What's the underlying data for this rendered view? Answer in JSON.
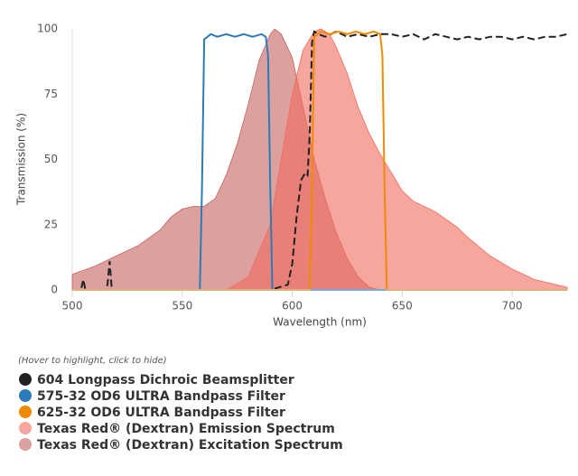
{
  "chart_data": {
    "type": "line",
    "x_label": "Wavelength (nm)",
    "y_label": "Transmission (%)",
    "legend_hint": "(Hover to highlight, click to hide)",
    "xlim": [
      500,
      725
    ],
    "ylim": [
      0,
      100
    ],
    "xticks": [
      500,
      550,
      600,
      650,
      700
    ],
    "yticks": [
      0,
      25,
      50,
      75,
      100
    ],
    "grid": false,
    "series": [
      {
        "name": "604 Longpass Dichroic Beamsplitter",
        "color": "#222222",
        "style": "line",
        "dashed": true,
        "x": [
          500,
          504,
          505,
          506,
          515,
          516,
          517,
          518,
          520,
          550,
          590,
          598,
          600,
          602,
          604,
          606,
          607,
          608,
          609,
          610,
          612,
          615,
          620,
          625,
          630,
          635,
          640,
          645,
          650,
          655,
          660,
          665,
          670,
          675,
          680,
          685,
          690,
          695,
          700,
          705,
          710,
          715,
          720,
          725
        ],
        "values": [
          0,
          0,
          4,
          0,
          0,
          2,
          11,
          0,
          0,
          0,
          0,
          2,
          10,
          28,
          42,
          45,
          44,
          60,
          95,
          99,
          98,
          97,
          99,
          97,
          98,
          97,
          98,
          98,
          97,
          98,
          96,
          98,
          97,
          96,
          97,
          96,
          97,
          97,
          96,
          97,
          96,
          97,
          97,
          98
        ]
      },
      {
        "name": "575-32 OD6 ULTRA Bandpass Filter",
        "color": "#2b7bba",
        "style": "line",
        "dashed": false,
        "x": [
          500,
          558,
          559,
          560,
          563,
          566,
          570,
          574,
          578,
          582,
          586,
          588,
          589,
          590,
          591,
          725
        ],
        "values": [
          0,
          0,
          40,
          96,
          98,
          97,
          98,
          97,
          98,
          97,
          98,
          97,
          90,
          40,
          0,
          0
        ]
      },
      {
        "name": "625-32 OD6 ULTRA Bandpass Filter",
        "color": "#f08a00",
        "style": "line",
        "dashed": false,
        "x": [
          500,
          608,
          609,
          610,
          613,
          617,
          621,
          625,
          629,
          633,
          637,
          640,
          641,
          642,
          643,
          725
        ],
        "values": [
          0,
          0,
          40,
          97,
          99,
          98,
          99,
          98,
          99,
          98,
          99,
          98,
          90,
          40,
          0,
          0
        ]
      },
      {
        "name": "Texas Red® (Dextran) Emission Spectrum",
        "color": "#f26b5e",
        "style": "area",
        "fill_opacity": 0.6,
        "x": [
          570,
          580,
          590,
          595,
          600,
          605,
          610,
          613,
          617,
          620,
          625,
          630,
          635,
          640,
          645,
          650,
          655,
          660,
          665,
          670,
          675,
          680,
          690,
          700,
          710,
          720,
          725
        ],
        "values": [
          0,
          5,
          25,
          50,
          75,
          92,
          99,
          100,
          98,
          93,
          83,
          70,
          60,
          52,
          45,
          38,
          34,
          32,
          30,
          27,
          24,
          20,
          13,
          8,
          4,
          2,
          1
        ]
      },
      {
        "name": "Texas Red® (Dextran) Excitation Spectrum",
        "color": "#c4625e",
        "style": "area",
        "fill_opacity": 0.6,
        "x": [
          500,
          510,
          520,
          530,
          540,
          545,
          550,
          555,
          560,
          565,
          570,
          575,
          580,
          585,
          590,
          592,
          595,
          600,
          605,
          610,
          615,
          620,
          625,
          630,
          635,
          640
        ],
        "values": [
          6,
          9,
          13,
          17,
          23,
          28,
          31,
          32,
          32,
          35,
          44,
          56,
          71,
          88,
          98,
          100,
          98,
          89,
          70,
          50,
          35,
          22,
          12,
          5,
          1,
          0
        ]
      }
    ]
  }
}
